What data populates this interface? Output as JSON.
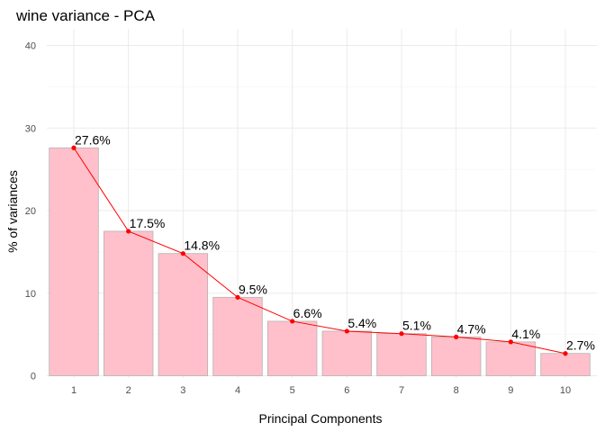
{
  "chart_data": {
    "type": "bar",
    "title": "wine variance - PCA",
    "xlabel": "Principal Components",
    "ylabel": "% of variances",
    "categories": [
      "1",
      "2",
      "3",
      "4",
      "5",
      "6",
      "7",
      "8",
      "9",
      "10"
    ],
    "values": [
      27.6,
      17.5,
      14.8,
      9.5,
      6.6,
      5.4,
      5.1,
      4.7,
      4.1,
      2.7
    ],
    "data_labels": [
      "27.6%",
      "17.5%",
      "14.8%",
      "9.5%",
      "6.6%",
      "5.4%",
      "5.1%",
      "4.7%",
      "4.1%",
      "2.7%"
    ],
    "yticks": [
      0,
      10,
      20,
      30,
      40
    ],
    "ylim": [
      0,
      40
    ],
    "grid": true,
    "overlay": "line-with-points",
    "colors": {
      "bar_fill": "#ffc0cb",
      "bar_stroke": "#b3b3b3",
      "line": "#ff0000",
      "point": "#ff0000"
    }
  }
}
